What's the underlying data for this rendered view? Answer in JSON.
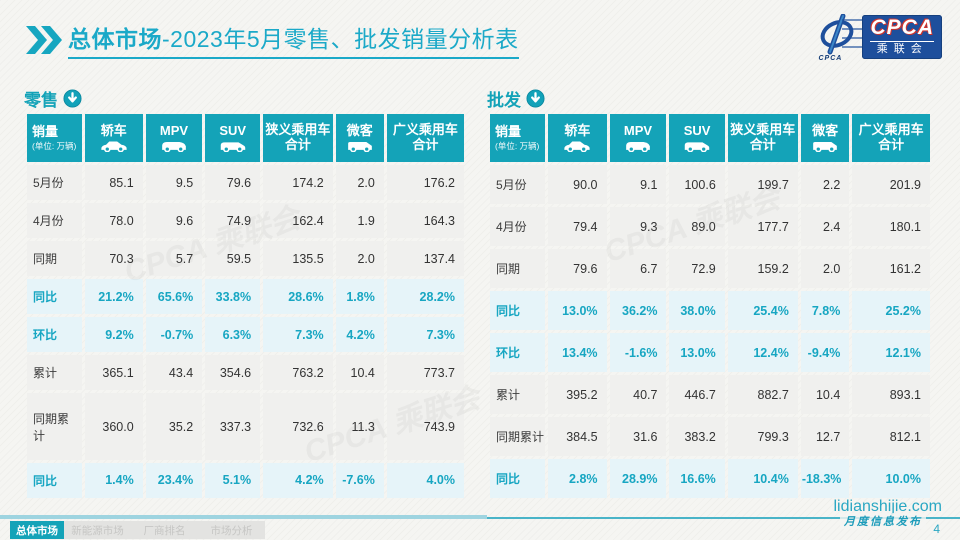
{
  "page": {
    "title_bold": "总体市场",
    "title_rest": "-2023年5月零售、批发销量分析表",
    "site": "lidianshijie.com",
    "slogan": "月度信息发布",
    "page_number": "4",
    "watermark": "CPCA 乘联会"
  },
  "logo": {
    "text": "CPCA",
    "subtext": "乘联会",
    "swirl_text": "CPCA"
  },
  "columns": [
    {
      "label": "销量",
      "sub": "(单位: 万辆)"
    },
    {
      "label": "轿车",
      "icon": "sedan-icon"
    },
    {
      "label": "MPV",
      "icon": "mpv-icon"
    },
    {
      "label": "SUV",
      "icon": "suv-icon"
    },
    {
      "label": "狭义乘用车",
      "label2": "合计"
    },
    {
      "label": "微客",
      "icon": "minivan-icon"
    },
    {
      "label": "广义乘用车",
      "label2": "合计"
    }
  ],
  "tables": [
    {
      "name": "零售",
      "rows": [
        {
          "label": "5月份",
          "type": "normal",
          "values": [
            "85.1",
            "9.5",
            "79.6",
            "174.2",
            "2.0",
            "176.2"
          ]
        },
        {
          "label": "4月份",
          "type": "normal",
          "values": [
            "78.0",
            "9.6",
            "74.9",
            "162.4",
            "1.9",
            "164.3"
          ]
        },
        {
          "label": "同期",
          "type": "normal",
          "values": [
            "70.3",
            "5.7",
            "59.5",
            "135.5",
            "2.0",
            "137.4"
          ]
        },
        {
          "label": "同比",
          "type": "highlight",
          "values": [
            "21.2%",
            "65.6%",
            "33.8%",
            "28.6%",
            "1.8%",
            "28.2%"
          ]
        },
        {
          "label": "环比",
          "type": "highlight",
          "values": [
            "9.2%",
            "-0.7%",
            "6.3%",
            "7.3%",
            "4.2%",
            "7.3%"
          ]
        },
        {
          "label": "累计",
          "type": "normal",
          "values": [
            "365.1",
            "43.4",
            "354.6",
            "763.2",
            "10.4",
            "773.7"
          ]
        },
        {
          "label": "同期累计",
          "type": "normal",
          "values": [
            "360.0",
            "35.2",
            "337.3",
            "732.6",
            "11.3",
            "743.9"
          ]
        },
        {
          "label": "同比",
          "type": "highlight",
          "values": [
            "1.4%",
            "23.4%",
            "5.1%",
            "4.2%",
            "-7.6%",
            "4.0%"
          ]
        }
      ]
    },
    {
      "name": "批发",
      "rows": [
        {
          "label": "5月份",
          "type": "normal",
          "values": [
            "90.0",
            "9.1",
            "100.6",
            "199.7",
            "2.2",
            "201.9"
          ]
        },
        {
          "label": "4月份",
          "type": "normal",
          "values": [
            "79.4",
            "9.3",
            "89.0",
            "177.7",
            "2.4",
            "180.1"
          ]
        },
        {
          "label": "同期",
          "type": "normal",
          "values": [
            "79.6",
            "6.7",
            "72.9",
            "159.2",
            "2.0",
            "161.2"
          ]
        },
        {
          "label": "同比",
          "type": "highlight",
          "values": [
            "13.0%",
            "36.2%",
            "38.0%",
            "25.4%",
            "7.8%",
            "25.2%"
          ]
        },
        {
          "label": "环比",
          "type": "highlight",
          "values": [
            "13.4%",
            "-1.6%",
            "13.0%",
            "12.4%",
            "-9.4%",
            "12.1%"
          ]
        },
        {
          "label": "累计",
          "type": "normal",
          "values": [
            "395.2",
            "40.7",
            "446.7",
            "882.7",
            "10.4",
            "893.1"
          ]
        },
        {
          "label": "同期累计",
          "type": "normal",
          "values": [
            "384.5",
            "31.6",
            "383.2",
            "799.3",
            "12.7",
            "812.1"
          ]
        },
        {
          "label": "同比",
          "type": "highlight",
          "values": [
            "2.8%",
            "28.9%",
            "16.6%",
            "10.4%",
            "-18.3%",
            "10.0%"
          ]
        }
      ]
    }
  ],
  "footer_tabs": [
    {
      "label": "总体市场",
      "active": true
    },
    {
      "label": "新能源市场",
      "active": false
    },
    {
      "label": "厂商排名",
      "active": false
    },
    {
      "label": "市场分析",
      "active": false
    }
  ],
  "colors": {
    "accent": "#14a3b8",
    "title": "#1ba9c8",
    "highlight_row": "#e6f4f9",
    "highlight_text": "#17a6c2",
    "logo_blue": "#1e4f9c",
    "logo_red": "#d0342c"
  }
}
